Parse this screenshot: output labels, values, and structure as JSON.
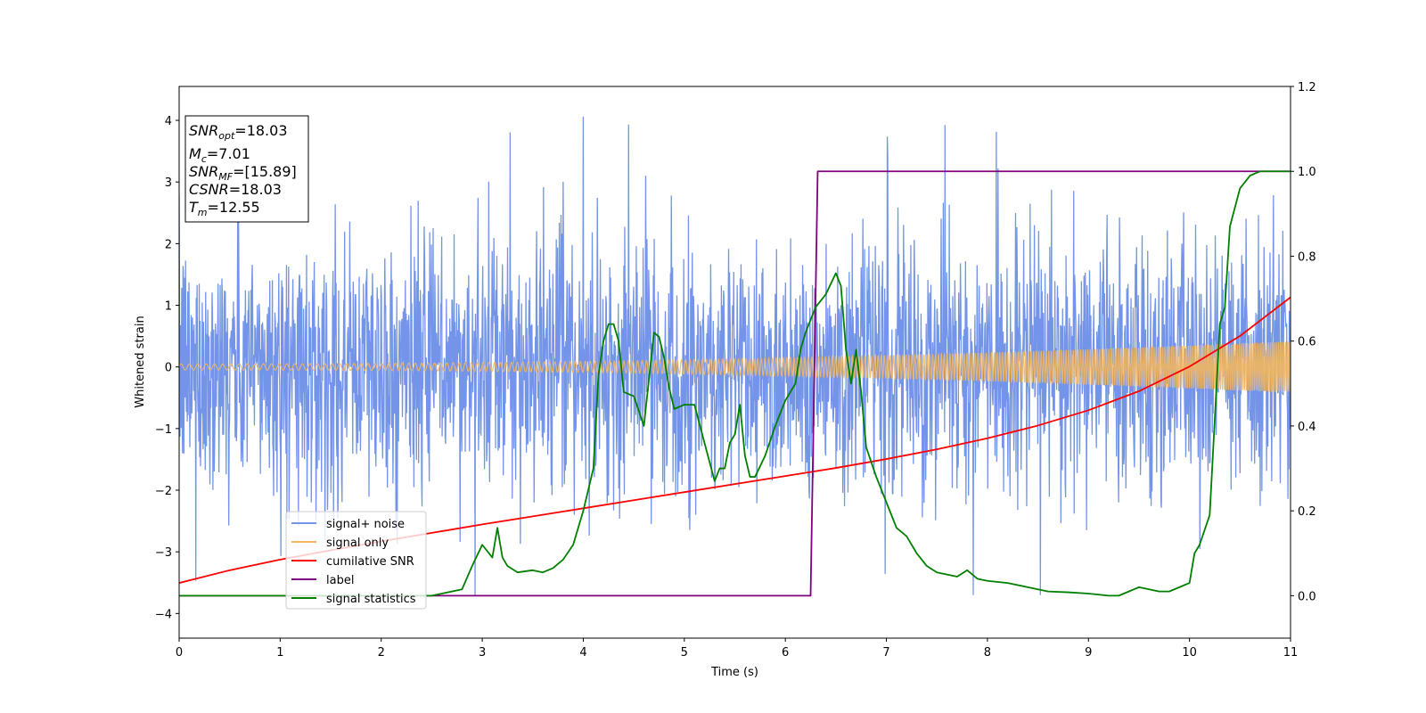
{
  "chart_data": {
    "type": "line",
    "xlabel": "Time (s)",
    "ylabel": "Whitened strain",
    "xlim": [
      0,
      11
    ],
    "ylim": [
      -4.4,
      4.55
    ],
    "y2lim": [
      -0.1,
      1.2
    ],
    "x_ticks": [
      0,
      1,
      2,
      3,
      4,
      5,
      6,
      7,
      8,
      9,
      10,
      11
    ],
    "y_ticks": [
      -4,
      -3,
      -2,
      -1,
      0,
      1,
      2,
      3,
      4
    ],
    "y2_ticks": [
      0.0,
      0.2,
      0.4,
      0.6,
      0.8,
      1.0,
      1.2
    ],
    "y2_tick_labels": [
      "0.0",
      "0.2",
      "0.4",
      "0.6",
      "0.8",
      "1.0",
      "1.2"
    ],
    "grid": false,
    "legend_position": "lower-left",
    "info_box": {
      "position": "top-left",
      "lines": [
        {
          "name": "snr-opt",
          "base": "SNR",
          "sub": "opt",
          "value": "=18.03"
        },
        {
          "name": "chirp-mass",
          "base": "M",
          "sub": "c",
          "value": "=7.01"
        },
        {
          "name": "snr-mf",
          "base": "SNR",
          "sub": "MF",
          "value": "=[15.89]"
        },
        {
          "name": "csnr",
          "base": "CSNR",
          "sub": "",
          "value": "=18.03"
        },
        {
          "name": "merger-time",
          "base": "T",
          "sub": "m",
          "value": "=12.55"
        }
      ]
    },
    "series": [
      {
        "name": "signal+ noise",
        "axis": "left",
        "color": "#7394e8",
        "kind": "noise",
        "sigma": 1.0,
        "x_range": [
          0,
          11
        ],
        "y_range": [
          -3.7,
          4.2
        ]
      },
      {
        "name": "signal only",
        "axis": "left",
        "color": "#f2b661",
        "kind": "chirp",
        "amplitude_start": 0.05,
        "amplitude_end": 0.42,
        "x_range": [
          0,
          11
        ]
      },
      {
        "name": "cumilative SNR",
        "axis": "right",
        "color": "#ff0000",
        "x": [
          0,
          0.5,
          1,
          1.5,
          2,
          2.5,
          3,
          3.5,
          4,
          4.5,
          5,
          5.5,
          6,
          6.5,
          7,
          7.5,
          8,
          8.5,
          9,
          9.5,
          10,
          10.5,
          11
        ],
        "y": [
          0.03,
          0.06,
          0.085,
          0.107,
          0.128,
          0.148,
          0.168,
          0.187,
          0.206,
          0.225,
          0.244,
          0.263,
          0.282,
          0.301,
          0.322,
          0.345,
          0.371,
          0.401,
          0.437,
          0.482,
          0.54,
          0.612,
          0.703
        ]
      },
      {
        "name": "label",
        "axis": "right",
        "color": "#800080",
        "x": [
          0,
          6.25,
          6.32,
          11
        ],
        "y": [
          0.0,
          0.0,
          1.0,
          1.0
        ]
      },
      {
        "name": "signal statistics",
        "axis": "right",
        "color": "#008000",
        "x": [
          0,
          0.5,
          1,
          1.5,
          2,
          2.5,
          2.7,
          2.8,
          2.9,
          3.0,
          3.1,
          3.15,
          3.2,
          3.25,
          3.35,
          3.5,
          3.6,
          3.7,
          3.8,
          3.9,
          4.0,
          4.1,
          4.15,
          4.2,
          4.25,
          4.3,
          4.35,
          4.4,
          4.5,
          4.6,
          4.7,
          4.75,
          4.8,
          4.85,
          4.9,
          5.0,
          5.1,
          5.2,
          5.3,
          5.35,
          5.4,
          5.45,
          5.5,
          5.55,
          5.6,
          5.65,
          5.7,
          5.8,
          5.9,
          6.0,
          6.1,
          6.15,
          6.2,
          6.3,
          6.4,
          6.5,
          6.55,
          6.6,
          6.65,
          6.7,
          6.75,
          6.8,
          6.9,
          7.0,
          7.1,
          7.2,
          7.3,
          7.4,
          7.5,
          7.6,
          7.7,
          7.8,
          7.9,
          8.0,
          8.2,
          8.4,
          8.6,
          8.8,
          9.0,
          9.2,
          9.3,
          9.4,
          9.5,
          9.6,
          9.7,
          9.8,
          9.9,
          10.0,
          10.05,
          10.1,
          10.2,
          10.3,
          10.35,
          10.4,
          10.5,
          10.6,
          10.7,
          10.8,
          11.0
        ],
        "y": [
          0.0,
          0.0,
          0.0,
          0.0,
          0.0,
          0.0,
          0.01,
          0.015,
          0.07,
          0.12,
          0.09,
          0.16,
          0.09,
          0.07,
          0.055,
          0.06,
          0.055,
          0.065,
          0.085,
          0.12,
          0.2,
          0.3,
          0.52,
          0.6,
          0.64,
          0.64,
          0.6,
          0.48,
          0.47,
          0.4,
          0.62,
          0.61,
          0.56,
          0.49,
          0.44,
          0.45,
          0.45,
          0.36,
          0.27,
          0.3,
          0.3,
          0.36,
          0.38,
          0.45,
          0.33,
          0.28,
          0.28,
          0.33,
          0.4,
          0.46,
          0.5,
          0.58,
          0.62,
          0.68,
          0.71,
          0.76,
          0.73,
          0.58,
          0.5,
          0.58,
          0.48,
          0.35,
          0.28,
          0.22,
          0.16,
          0.14,
          0.1,
          0.07,
          0.055,
          0.05,
          0.045,
          0.06,
          0.04,
          0.035,
          0.03,
          0.02,
          0.01,
          0.008,
          0.005,
          0.0,
          0.0,
          0.01,
          0.02,
          0.015,
          0.01,
          0.01,
          0.02,
          0.03,
          0.1,
          0.12,
          0.19,
          0.64,
          0.68,
          0.87,
          0.96,
          0.99,
          1.0,
          1.0,
          1.0
        ]
      }
    ]
  }
}
